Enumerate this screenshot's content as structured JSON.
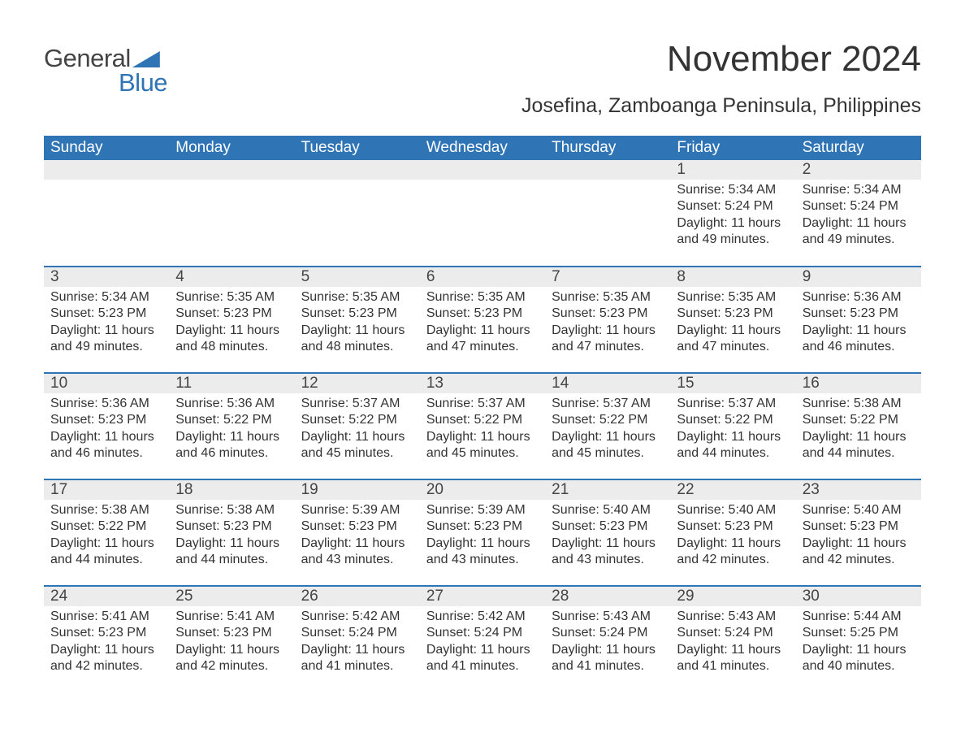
{
  "logo": {
    "line1": "General",
    "line2": "Blue"
  },
  "title": "November 2024",
  "location": "Josefina, Zamboanga Peninsula, Philippines",
  "colors": {
    "header_bg": "#2f74b5",
    "header_text": "#ffffff",
    "daynum_bg": "#ececec",
    "row_divider": "#2f74b5",
    "body_text": "#333333",
    "page_bg": "#ffffff",
    "logo_accent": "#2f74b5"
  },
  "typography": {
    "title_fontsize": 44,
    "location_fontsize": 25,
    "header_fontsize": 19,
    "daynum_fontsize": 19,
    "body_fontsize": 16
  },
  "calendar": {
    "type": "table",
    "columns": [
      "Sunday",
      "Monday",
      "Tuesday",
      "Wednesday",
      "Thursday",
      "Friday",
      "Saturday"
    ],
    "weeks": [
      [
        null,
        null,
        null,
        null,
        null,
        {
          "n": "1",
          "sunrise": "Sunrise: 5:34 AM",
          "sunset": "Sunset: 5:24 PM",
          "day1": "Daylight: 11 hours",
          "day2": "and 49 minutes."
        },
        {
          "n": "2",
          "sunrise": "Sunrise: 5:34 AM",
          "sunset": "Sunset: 5:24 PM",
          "day1": "Daylight: 11 hours",
          "day2": "and 49 minutes."
        }
      ],
      [
        {
          "n": "3",
          "sunrise": "Sunrise: 5:34 AM",
          "sunset": "Sunset: 5:23 PM",
          "day1": "Daylight: 11 hours",
          "day2": "and 49 minutes."
        },
        {
          "n": "4",
          "sunrise": "Sunrise: 5:35 AM",
          "sunset": "Sunset: 5:23 PM",
          "day1": "Daylight: 11 hours",
          "day2": "and 48 minutes."
        },
        {
          "n": "5",
          "sunrise": "Sunrise: 5:35 AM",
          "sunset": "Sunset: 5:23 PM",
          "day1": "Daylight: 11 hours",
          "day2": "and 48 minutes."
        },
        {
          "n": "6",
          "sunrise": "Sunrise: 5:35 AM",
          "sunset": "Sunset: 5:23 PM",
          "day1": "Daylight: 11 hours",
          "day2": "and 47 minutes."
        },
        {
          "n": "7",
          "sunrise": "Sunrise: 5:35 AM",
          "sunset": "Sunset: 5:23 PM",
          "day1": "Daylight: 11 hours",
          "day2": "and 47 minutes."
        },
        {
          "n": "8",
          "sunrise": "Sunrise: 5:35 AM",
          "sunset": "Sunset: 5:23 PM",
          "day1": "Daylight: 11 hours",
          "day2": "and 47 minutes."
        },
        {
          "n": "9",
          "sunrise": "Sunrise: 5:36 AM",
          "sunset": "Sunset: 5:23 PM",
          "day1": "Daylight: 11 hours",
          "day2": "and 46 minutes."
        }
      ],
      [
        {
          "n": "10",
          "sunrise": "Sunrise: 5:36 AM",
          "sunset": "Sunset: 5:23 PM",
          "day1": "Daylight: 11 hours",
          "day2": "and 46 minutes."
        },
        {
          "n": "11",
          "sunrise": "Sunrise: 5:36 AM",
          "sunset": "Sunset: 5:22 PM",
          "day1": "Daylight: 11 hours",
          "day2": "and 46 minutes."
        },
        {
          "n": "12",
          "sunrise": "Sunrise: 5:37 AM",
          "sunset": "Sunset: 5:22 PM",
          "day1": "Daylight: 11 hours",
          "day2": "and 45 minutes."
        },
        {
          "n": "13",
          "sunrise": "Sunrise: 5:37 AM",
          "sunset": "Sunset: 5:22 PM",
          "day1": "Daylight: 11 hours",
          "day2": "and 45 minutes."
        },
        {
          "n": "14",
          "sunrise": "Sunrise: 5:37 AM",
          "sunset": "Sunset: 5:22 PM",
          "day1": "Daylight: 11 hours",
          "day2": "and 45 minutes."
        },
        {
          "n": "15",
          "sunrise": "Sunrise: 5:37 AM",
          "sunset": "Sunset: 5:22 PM",
          "day1": "Daylight: 11 hours",
          "day2": "and 44 minutes."
        },
        {
          "n": "16",
          "sunrise": "Sunrise: 5:38 AM",
          "sunset": "Sunset: 5:22 PM",
          "day1": "Daylight: 11 hours",
          "day2": "and 44 minutes."
        }
      ],
      [
        {
          "n": "17",
          "sunrise": "Sunrise: 5:38 AM",
          "sunset": "Sunset: 5:22 PM",
          "day1": "Daylight: 11 hours",
          "day2": "and 44 minutes."
        },
        {
          "n": "18",
          "sunrise": "Sunrise: 5:38 AM",
          "sunset": "Sunset: 5:23 PM",
          "day1": "Daylight: 11 hours",
          "day2": "and 44 minutes."
        },
        {
          "n": "19",
          "sunrise": "Sunrise: 5:39 AM",
          "sunset": "Sunset: 5:23 PM",
          "day1": "Daylight: 11 hours",
          "day2": "and 43 minutes."
        },
        {
          "n": "20",
          "sunrise": "Sunrise: 5:39 AM",
          "sunset": "Sunset: 5:23 PM",
          "day1": "Daylight: 11 hours",
          "day2": "and 43 minutes."
        },
        {
          "n": "21",
          "sunrise": "Sunrise: 5:40 AM",
          "sunset": "Sunset: 5:23 PM",
          "day1": "Daylight: 11 hours",
          "day2": "and 43 minutes."
        },
        {
          "n": "22",
          "sunrise": "Sunrise: 5:40 AM",
          "sunset": "Sunset: 5:23 PM",
          "day1": "Daylight: 11 hours",
          "day2": "and 42 minutes."
        },
        {
          "n": "23",
          "sunrise": "Sunrise: 5:40 AM",
          "sunset": "Sunset: 5:23 PM",
          "day1": "Daylight: 11 hours",
          "day2": "and 42 minutes."
        }
      ],
      [
        {
          "n": "24",
          "sunrise": "Sunrise: 5:41 AM",
          "sunset": "Sunset: 5:23 PM",
          "day1": "Daylight: 11 hours",
          "day2": "and 42 minutes."
        },
        {
          "n": "25",
          "sunrise": "Sunrise: 5:41 AM",
          "sunset": "Sunset: 5:23 PM",
          "day1": "Daylight: 11 hours",
          "day2": "and 42 minutes."
        },
        {
          "n": "26",
          "sunrise": "Sunrise: 5:42 AM",
          "sunset": "Sunset: 5:24 PM",
          "day1": "Daylight: 11 hours",
          "day2": "and 41 minutes."
        },
        {
          "n": "27",
          "sunrise": "Sunrise: 5:42 AM",
          "sunset": "Sunset: 5:24 PM",
          "day1": "Daylight: 11 hours",
          "day2": "and 41 minutes."
        },
        {
          "n": "28",
          "sunrise": "Sunrise: 5:43 AM",
          "sunset": "Sunset: 5:24 PM",
          "day1": "Daylight: 11 hours",
          "day2": "and 41 minutes."
        },
        {
          "n": "29",
          "sunrise": "Sunrise: 5:43 AM",
          "sunset": "Sunset: 5:24 PM",
          "day1": "Daylight: 11 hours",
          "day2": "and 41 minutes."
        },
        {
          "n": "30",
          "sunrise": "Sunrise: 5:44 AM",
          "sunset": "Sunset: 5:25 PM",
          "day1": "Daylight: 11 hours",
          "day2": "and 40 minutes."
        }
      ]
    ]
  }
}
